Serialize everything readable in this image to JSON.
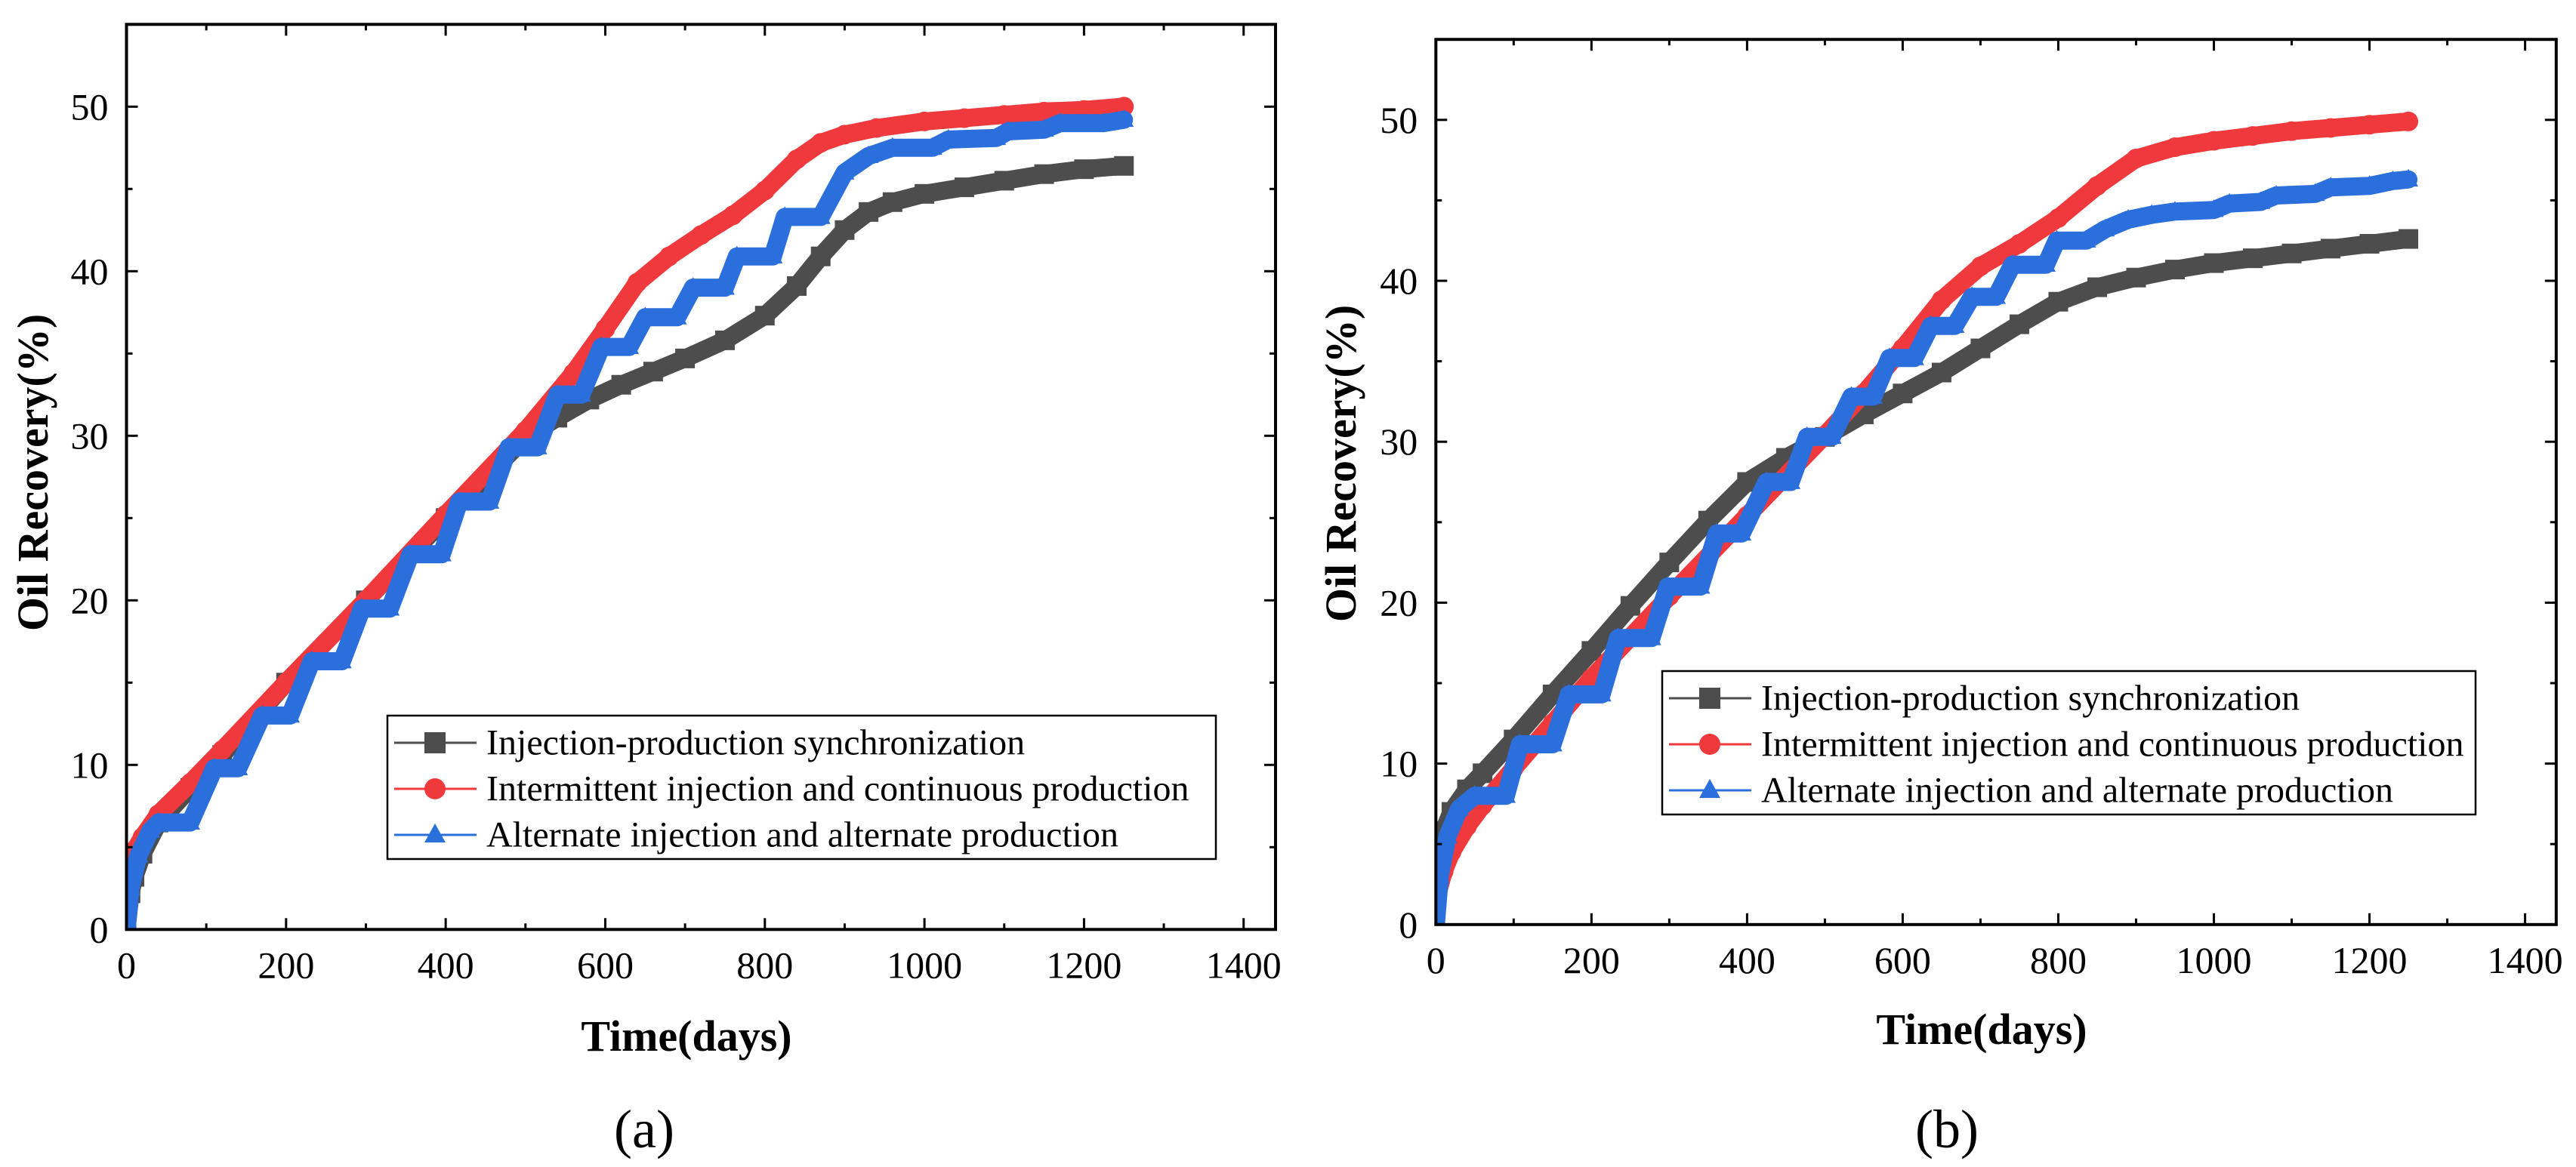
{
  "chart_data": [
    {
      "type": "line",
      "panel": "(a)",
      "title": "",
      "xlabel": "Time(days)",
      "ylabel": "Oil Recovery(%)",
      "xlim": [
        0,
        1440
      ],
      "ylim": [
        0,
        55
      ],
      "xticks": [
        0,
        200,
        400,
        600,
        800,
        1000,
        1200,
        1400
      ],
      "yticks": [
        0,
        10,
        20,
        30,
        40,
        50
      ],
      "grid": false,
      "legend_position": "lower-right",
      "series": [
        {
          "name": "Injection-production synchronization",
          "marker": "square",
          "color": "#4d4d4d",
          "x": [
            0,
            5,
            10,
            20,
            40,
            80,
            120,
            200,
            300,
            400,
            500,
            540,
            580,
            620,
            660,
            700,
            750,
            800,
            840,
            870,
            900,
            930,
            960,
            1000,
            1050,
            1100,
            1150,
            1200,
            1250
          ],
          "y": [
            0,
            2.2,
            3.2,
            4.6,
            6.5,
            8.6,
            10.6,
            15,
            20,
            25,
            29.9,
            31.1,
            32.2,
            33.1,
            33.9,
            34.7,
            35.8,
            37.3,
            39.1,
            40.9,
            42.5,
            43.6,
            44.2,
            44.7,
            45.1,
            45.5,
            45.9,
            46.2,
            46.4
          ]
        },
        {
          "name": "Intermittent injection and continuous production",
          "marker": "circle",
          "color": "#f0393c",
          "x": [
            0,
            10,
            20,
            40,
            80,
            120,
            200,
            300,
            400,
            500,
            560,
            600,
            640,
            680,
            720,
            760,
            800,
            840,
            870,
            900,
            940,
            1000,
            1050,
            1100,
            1150,
            1200,
            1250
          ],
          "y": [
            3.5,
            4.8,
            5.6,
            7,
            8.9,
            10.9,
            15,
            20,
            25.2,
            30.3,
            33.8,
            36.5,
            39.3,
            40.9,
            42.2,
            43.4,
            44.9,
            46.8,
            47.8,
            48.3,
            48.7,
            49.1,
            49.3,
            49.5,
            49.7,
            49.8,
            50
          ]
        },
        {
          "name": "Alternate injection and alternate production",
          "marker": "triangle",
          "color": "#2a6fdc",
          "x": [
            0,
            5,
            15,
            30,
            40,
            80,
            110,
            140,
            170,
            205,
            232,
            270,
            295,
            330,
            356,
            395,
            417,
            455,
            479,
            515,
            540,
            570,
            595,
            630,
            650,
            690,
            710,
            750,
            765,
            810,
            825,
            870,
            900,
            930,
            960,
            1010,
            1030,
            1090,
            1105,
            1150,
            1170,
            1225,
            1250
          ],
          "y": [
            0,
            2.5,
            4.5,
            6,
            6.5,
            6.5,
            9.8,
            9.8,
            13,
            13,
            16.3,
            16.3,
            19.5,
            19.5,
            22.8,
            22.8,
            26,
            26,
            29.3,
            29.3,
            32.5,
            32.5,
            35.4,
            35.4,
            37.2,
            37.2,
            39,
            39,
            40.9,
            40.9,
            43.3,
            43.3,
            46,
            47,
            47.5,
            47.5,
            48,
            48.1,
            48.5,
            48.6,
            49,
            49,
            49.2
          ]
        }
      ]
    },
    {
      "type": "line",
      "panel": "(b)",
      "title": "",
      "xlabel": "Time(days)",
      "ylabel": "Oil Recovery(%)",
      "xlim": [
        0,
        1440
      ],
      "ylim": [
        0,
        55
      ],
      "xticks": [
        0,
        200,
        400,
        600,
        800,
        1000,
        1200,
        1400
      ],
      "yticks": [
        0,
        10,
        20,
        30,
        40,
        50
      ],
      "grid": false,
      "legend_position": "lower-right",
      "series": [
        {
          "name": "Injection-production synchronization",
          "marker": "square",
          "color": "#4d4d4d",
          "x": [
            0,
            5,
            10,
            20,
            40,
            60,
            100,
            150,
            200,
            250,
            300,
            350,
            400,
            450,
            500,
            550,
            600,
            650,
            700,
            750,
            800,
            850,
            900,
            950,
            1000,
            1050,
            1100,
            1150,
            1200,
            1250
          ],
          "y": [
            3.5,
            4.8,
            5.8,
            7,
            8.4,
            9.4,
            11.5,
            14.3,
            17,
            19.8,
            22.5,
            25.1,
            27.5,
            29,
            30.3,
            31.7,
            33,
            34.3,
            35.8,
            37.3,
            38.7,
            39.6,
            40.2,
            40.7,
            41.1,
            41.4,
            41.7,
            42,
            42.3,
            42.6
          ]
        },
        {
          "name": "Intermittent injection and continuous production",
          "marker": "circle",
          "color": "#f0393c",
          "x": [
            0,
            10,
            20,
            40,
            60,
            100,
            150,
            200,
            300,
            400,
            500,
            550,
            600,
            650,
            700,
            750,
            800,
            850,
            900,
            950,
            1000,
            1050,
            1100,
            1150,
            1200,
            1250
          ],
          "y": [
            1.5,
            3.3,
            4.5,
            6.1,
            7.4,
            9.7,
            12.5,
            15.3,
            20.4,
            25.4,
            30.4,
            33,
            35.8,
            38.8,
            40.9,
            42.3,
            43.9,
            45.9,
            47.6,
            48.3,
            48.7,
            49,
            49.3,
            49.5,
            49.7,
            49.9
          ]
        },
        {
          "name": "Alternate injection and alternate production",
          "marker": "triangle",
          "color": "#2a6fdc",
          "x": [
            0,
            5,
            15,
            30,
            50,
            90,
            108,
            150,
            171,
            213,
            234,
            277,
            298,
            340,
            361,
            393,
            425,
            456,
            477,
            509,
            534,
            562,
            583,
            615,
            636,
            667,
            689,
            720,
            741,
            784,
            798,
            836,
            860,
            890,
            920,
            950,
            1000,
            1020,
            1060,
            1080,
            1130,
            1150,
            1200,
            1230,
            1250
          ],
          "y": [
            0,
            3,
            5.5,
            7.2,
            8,
            8,
            11.2,
            11.2,
            14.3,
            14.3,
            17.8,
            17.8,
            21,
            21,
            24.3,
            24.3,
            27.5,
            27.5,
            30.3,
            30.3,
            32.8,
            32.8,
            35.2,
            35.2,
            37.2,
            37.2,
            39,
            39,
            41,
            41,
            42.5,
            42.5,
            43.2,
            43.8,
            44.1,
            44.3,
            44.4,
            44.8,
            44.9,
            45.3,
            45.4,
            45.8,
            45.9,
            46.2,
            46.3
          ]
        }
      ]
    }
  ]
}
